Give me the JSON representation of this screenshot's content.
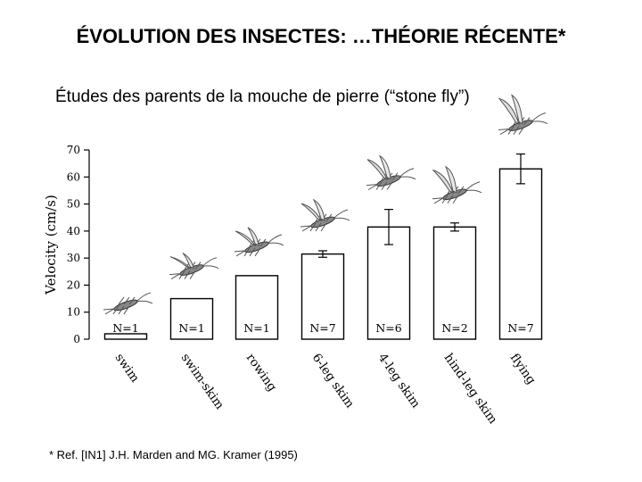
{
  "slide": {
    "title": "ÉVOLUTION DES INSECTES: …THÉORIE RÉCENTE*",
    "subtitle": "Études des parents de la mouche de pierre (“stone fly”)",
    "footnote": "* Ref. [IN1] J.H. Marden and MG. Kramer (1995)"
  },
  "chart_data": {
    "type": "bar",
    "ylabel": "Velocity (cm/s)",
    "ylim": [
      0,
      70
    ],
    "yticks": [
      0,
      10,
      20,
      30,
      40,
      50,
      60,
      70
    ],
    "categories": [
      "swim",
      "swim-skim",
      "rowing",
      "6-leg skim",
      "4-leg skim",
      "hind-leg skim",
      "flying"
    ],
    "values": [
      2,
      15,
      23.5,
      31.5,
      41.5,
      41.5,
      63
    ],
    "error": [
      null,
      null,
      null,
      1.2,
      6.5,
      1.5,
      5.5
    ],
    "n_labels": [
      "N=1",
      "N=1",
      "N=1",
      "N=7",
      "N=6",
      "N=2",
      "N=7"
    ],
    "illustrations": "stone fly drawing above each bar"
  }
}
